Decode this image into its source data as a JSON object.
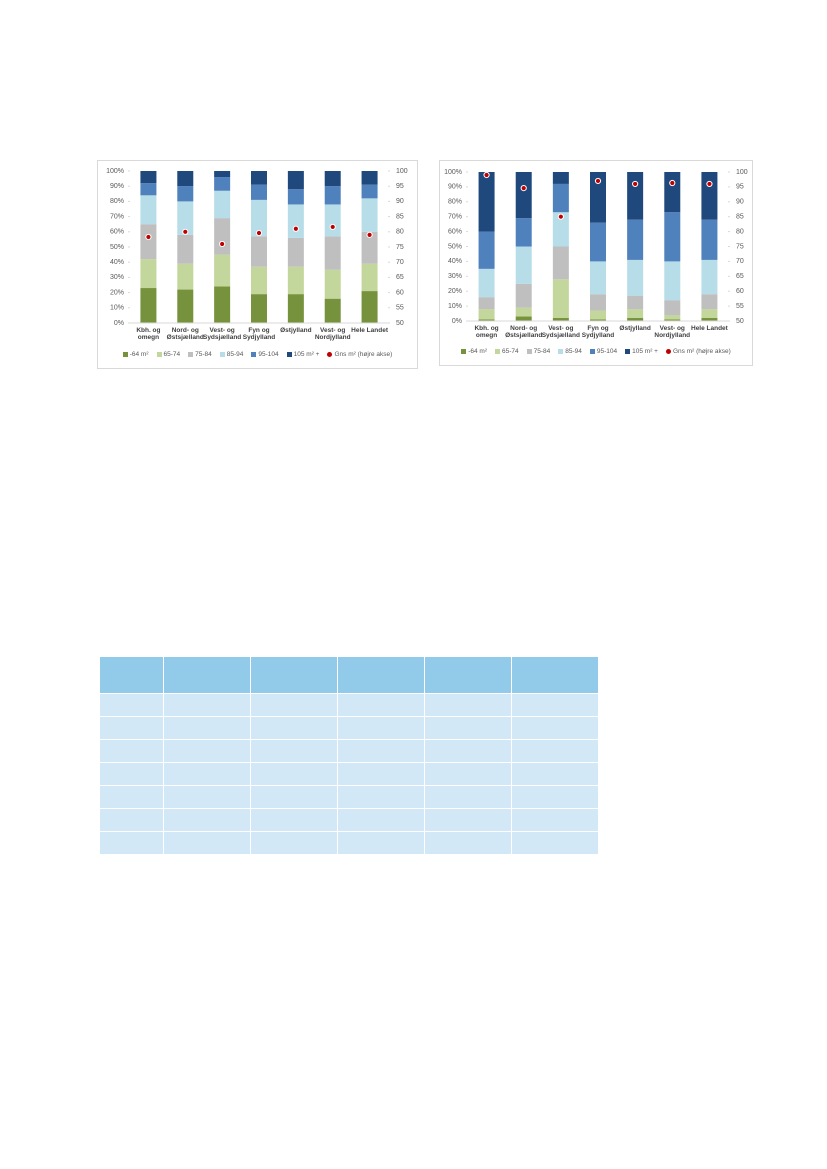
{
  "chart_data": [
    {
      "type": "bar",
      "stacked": true,
      "categories": [
        "Kbh. og omegn",
        "Nord- og Østsjælland",
        "Vest- og Sydsjælland",
        "Fyn og Sydjylland",
        "Østjylland",
        "Vest- og Nordjylland",
        "Hele Landet"
      ],
      "series": [
        {
          "name": "-64 m²",
          "color": "#76923c",
          "values": [
            23,
            22,
            24,
            19,
            19,
            16,
            21
          ]
        },
        {
          "name": "65-74",
          "color": "#c3d69b",
          "values": [
            19,
            17,
            21,
            18,
            18,
            19,
            18
          ]
        },
        {
          "name": "75-84",
          "color": "#bfbfbf",
          "values": [
            23,
            19,
            24,
            20,
            19,
            22,
            21
          ]
        },
        {
          "name": "85-94",
          "color": "#b7dde8",
          "values": [
            19,
            22,
            18,
            24,
            22,
            21,
            22
          ]
        },
        {
          "name": "95-104",
          "color": "#4f81bd",
          "values": [
            8,
            10,
            9,
            10,
            10,
            12,
            9
          ]
        },
        {
          "name": "105 m² +",
          "color": "#1f497d",
          "values": [
            8,
            10,
            4,
            9,
            12,
            10,
            9
          ]
        },
        {
          "name": "Gns m² (højre akse)",
          "type": "scatter",
          "axis": "y2",
          "color": "#c00000",
          "values": [
            78.3,
            80,
            76,
            79.6,
            81,
            81.6,
            79
          ]
        }
      ],
      "ylim": [
        0,
        100
      ],
      "yticks": [
        {
          "value": 0,
          "label": "0%"
        },
        {
          "value": 10,
          "label": "10%"
        },
        {
          "value": 20,
          "label": "20%"
        },
        {
          "value": 30,
          "label": "30%"
        },
        {
          "value": 40,
          "label": "40%"
        },
        {
          "value": 50,
          "label": "50%"
        },
        {
          "value": 60,
          "label": "60%"
        },
        {
          "value": 70,
          "label": "70%"
        },
        {
          "value": 80,
          "label": "80%"
        },
        {
          "value": 90,
          "label": "90%"
        },
        {
          "value": 100,
          "label": "100%"
        }
      ],
      "y2lim": [
        50,
        100
      ],
      "y2ticks": [
        50,
        55,
        60,
        65,
        70,
        75,
        80,
        85,
        90,
        95,
        100
      ],
      "legend": "bottom"
    },
    {
      "type": "bar",
      "stacked": true,
      "categories": [
        "Kbh. og omegn",
        "Nord- og Østsjælland",
        "Vest- og Sydsjælland",
        "Fyn og Sydjylland",
        "Østjylland",
        "Vest- og Nordjylland",
        "Hele Landet"
      ],
      "series": [
        {
          "name": "-64 m²",
          "color": "#76923c",
          "values": [
            1,
            3,
            2,
            1,
            2,
            1,
            2
          ]
        },
        {
          "name": "65-74",
          "color": "#c3d69b",
          "values": [
            7,
            6,
            26,
            6,
            6,
            3,
            6
          ]
        },
        {
          "name": "75-84",
          "color": "#bfbfbf",
          "values": [
            8,
            16,
            22,
            11,
            9,
            10,
            10
          ]
        },
        {
          "name": "85-94",
          "color": "#b7dde8",
          "values": [
            19,
            25,
            23,
            22,
            24,
            26,
            23
          ]
        },
        {
          "name": "95-104",
          "color": "#4f81bd",
          "values": [
            25,
            19,
            19,
            26,
            27,
            33,
            27
          ]
        },
        {
          "name": "105 m² +",
          "color": "#1f497d",
          "values": [
            40,
            31,
            8,
            34,
            32,
            27,
            32
          ]
        },
        {
          "name": "Gns m² (højre akse)",
          "type": "scatter",
          "axis": "y2",
          "color": "#c00000",
          "values": [
            99,
            94.6,
            85,
            97,
            96,
            96.3,
            96
          ]
        }
      ],
      "ylim": [
        0,
        100
      ],
      "yticks": [
        {
          "value": 0,
          "label": "0%"
        },
        {
          "value": 10,
          "label": "10%"
        },
        {
          "value": 20,
          "label": "20%"
        },
        {
          "value": 30,
          "label": "30%"
        },
        {
          "value": 40,
          "label": "40%"
        },
        {
          "value": 50,
          "label": "50%"
        },
        {
          "value": 60,
          "label": "60%"
        },
        {
          "value": 70,
          "label": "70%"
        },
        {
          "value": 80,
          "label": "80%"
        },
        {
          "value": 90,
          "label": "90%"
        },
        {
          "value": 100,
          "label": "100%"
        }
      ],
      "y2lim": [
        50,
        100
      ],
      "y2ticks": [
        50,
        55,
        60,
        65,
        70,
        75,
        80,
        85,
        90,
        95,
        100
      ],
      "legend": "bottom"
    }
  ]
}
